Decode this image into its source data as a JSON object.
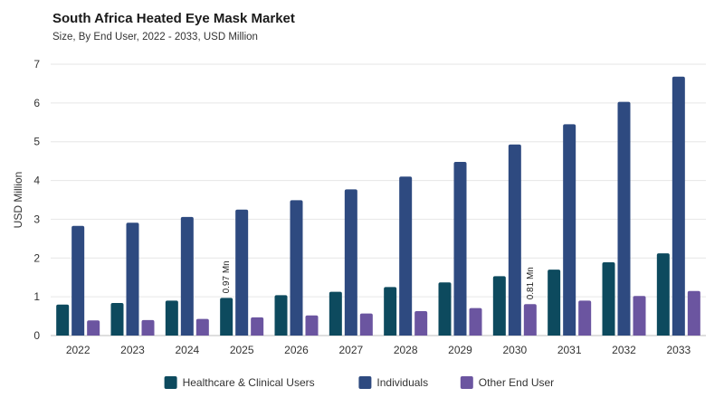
{
  "title": "South Africa Heated Eye Mask Market",
  "subtitle": "Size, By End User, 2022 - 2033, USD Million",
  "chart_data": {
    "type": "bar",
    "title": "South Africa Heated Eye Mask Market",
    "subtitle": "Size, By End User, 2022 - 2033, USD Million",
    "xlabel": "",
    "ylabel": "USD Million",
    "ylim": [
      0,
      7
    ],
    "yticks": [
      0,
      1,
      2,
      3,
      4,
      5,
      6,
      7
    ],
    "grid": true,
    "legend_position": "bottom-center",
    "categories": [
      "2022",
      "2023",
      "2024",
      "2025",
      "2026",
      "2027",
      "2028",
      "2029",
      "2030",
      "2031",
      "2032",
      "2033"
    ],
    "series": [
      {
        "name": "Healthcare & Clinical Users",
        "color": "#0d4a5e",
        "values": [
          0.8,
          0.84,
          0.9,
          0.97,
          1.04,
          1.13,
          1.25,
          1.37,
          1.53,
          1.7,
          1.89,
          2.12
        ]
      },
      {
        "name": "Individuals",
        "color": "#2e4a80",
        "values": [
          2.83,
          2.91,
          3.06,
          3.25,
          3.49,
          3.77,
          4.1,
          4.48,
          4.93,
          5.45,
          6.03,
          6.68
        ]
      },
      {
        "name": "Other End User",
        "color": "#6b55a0",
        "values": [
          0.39,
          0.4,
          0.43,
          0.47,
          0.52,
          0.57,
          0.63,
          0.71,
          0.81,
          0.9,
          1.02,
          1.15
        ]
      }
    ],
    "annotations": [
      {
        "series": 0,
        "category": "2025",
        "text": "0.97 Mn"
      },
      {
        "series": 2,
        "category": "2030",
        "text": "0.81 Mn"
      }
    ]
  }
}
